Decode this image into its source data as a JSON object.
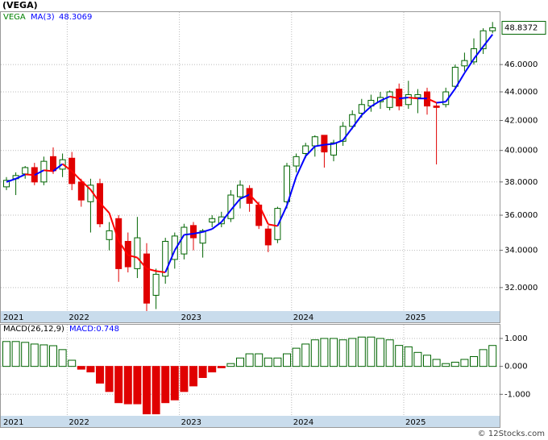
{
  "chart_data": [
    {
      "type": "candlestick",
      "title": "(VEGA)",
      "name": "VEGA",
      "x": [
        "2021",
        null,
        null,
        null,
        null,
        null,
        null,
        "2022",
        null,
        null,
        null,
        null,
        null,
        null,
        null,
        null,
        null,
        null,
        null,
        "2023",
        null,
        null,
        null,
        null,
        null,
        null,
        null,
        null,
        null,
        null,
        null,
        "2024",
        null,
        null,
        null,
        null,
        null,
        null,
        null,
        null,
        null,
        null,
        null,
        "2025",
        null,
        null,
        null,
        null,
        null,
        null,
        null,
        null,
        null
      ],
      "open": [
        37.7,
        38.2,
        38.5,
        38.9,
        38.0,
        39.6,
        38.8,
        39.5,
        38.0,
        36.8,
        37.9,
        34.6,
        35.8,
        34.5,
        33.0,
        33.8,
        31.6,
        32.6,
        33.5,
        33.8,
        35.4,
        34.4,
        35.6,
        35.5,
        35.8,
        37.1,
        37.6,
        36.6,
        35.2,
        34.6,
        36.8,
        39.0,
        39.8,
        40.3,
        41.0,
        39.7,
        40.6,
        41.6,
        42.5,
        43.0,
        43.3,
        42.9,
        44.2,
        43.1,
        43.6,
        44.0,
        43.0,
        43.1,
        44.4,
        45.9,
        46.2,
        47.2,
        48.6
      ],
      "high": [
        38.3,
        38.6,
        39.0,
        39.2,
        39.6,
        40.2,
        39.8,
        39.9,
        38.2,
        38.2,
        38.2,
        35.6,
        36.0,
        35.0,
        35.9,
        34.4,
        33.0,
        34.7,
        35.0,
        35.5,
        35.6,
        35.2,
        36.0,
        36.2,
        37.5,
        38.1,
        37.8,
        36.8,
        35.4,
        36.5,
        39.2,
        39.8,
        40.5,
        41.0,
        41.0,
        40.7,
        41.9,
        42.7,
        43.5,
        43.8,
        44.0,
        44.1,
        44.6,
        44.8,
        44.2,
        44.3,
        43.2,
        44.3,
        46.0,
        46.9,
        48.0,
        48.8,
        49.3
      ],
      "low": [
        37.5,
        37.2,
        38.2,
        37.8,
        37.8,
        38.5,
        38.3,
        37.5,
        36.5,
        35.0,
        35.3,
        34.0,
        32.3,
        32.8,
        32.5,
        30.8,
        30.9,
        32.2,
        33.0,
        33.5,
        34.0,
        33.6,
        35.3,
        35.3,
        35.6,
        36.4,
        36.2,
        35.2,
        33.9,
        34.4,
        36.4,
        38.6,
        39.5,
        39.6,
        38.9,
        39.3,
        40.3,
        41.4,
        42.2,
        42.6,
        42.8,
        42.7,
        42.7,
        42.8,
        42.5,
        42.4,
        39.1,
        42.9,
        44.2,
        45.5,
        46.0,
        46.8,
        48.4
      ],
      "close": [
        38.1,
        38.4,
        38.9,
        38.0,
        39.3,
        38.7,
        39.4,
        37.9,
        36.9,
        37.8,
        35.5,
        35.1,
        33.0,
        33.1,
        34.7,
        31.2,
        32.7,
        34.5,
        34.8,
        35.3,
        34.7,
        35.1,
        35.8,
        35.9,
        37.2,
        37.8,
        36.7,
        35.4,
        34.3,
        36.4,
        39.0,
        39.6,
        40.3,
        40.9,
        39.9,
        40.5,
        41.6,
        42.4,
        43.1,
        43.4,
        43.6,
        44.0,
        43.0,
        43.8,
        43.8,
        43.0,
        42.9,
        44.0,
        45.8,
        46.3,
        47.2,
        48.6,
        48.8372
      ],
      "last_label": "48.8372",
      "up_color": "#006400",
      "down_color": "#e00000",
      "name_color": "#008000",
      "ma": {
        "name": "MA(3)",
        "value_label": "48.3069",
        "up_color": "#0000ff",
        "down_color": "#ff0000",
        "values": [
          38.0,
          38.2,
          38.47,
          38.43,
          38.73,
          38.67,
          39.13,
          38.67,
          38.07,
          37.53,
          36.73,
          36.13,
          34.53,
          33.73,
          33.6,
          33.0,
          32.87,
          32.8,
          34.0,
          34.87,
          34.93,
          35.03,
          35.2,
          35.6,
          36.3,
          36.97,
          37.23,
          36.63,
          35.47,
          35.37,
          36.57,
          38.33,
          39.63,
          40.27,
          40.37,
          40.43,
          40.67,
          41.5,
          42.37,
          42.97,
          43.37,
          43.67,
          43.53,
          43.6,
          43.53,
          43.53,
          43.23,
          43.3,
          44.23,
          45.37,
          46.43,
          47.37,
          48.3069
        ]
      },
      "ylim": [
        30.8,
        50.1
      ],
      "log_scale": true,
      "grid": true,
      "yticks": [
        {
          "value": 32,
          "label": "32.0000"
        },
        {
          "value": 34,
          "label": "34.0000"
        },
        {
          "value": 36,
          "label": "36.0000"
        },
        {
          "value": 38,
          "label": "38.0000"
        },
        {
          "value": 40,
          "label": "40.0000"
        },
        {
          "value": 42,
          "label": "42.0000"
        },
        {
          "value": 44,
          "label": "44.0000"
        },
        {
          "value": 46,
          "label": "46.0000"
        }
      ]
    },
    {
      "type": "bar",
      "title": "MACD(26,12,9)",
      "label": "MACD:0.748",
      "label_color": "#0000ff",
      "values": [
        0.89,
        0.89,
        0.86,
        0.8,
        0.77,
        0.74,
        0.6,
        0.22,
        -0.1,
        -0.2,
        -0.6,
        -0.9,
        -1.3,
        -1.34,
        -1.34,
        -1.7,
        -1.7,
        -1.3,
        -1.2,
        -0.9,
        -0.7,
        -0.4,
        -0.2,
        -0.05,
        0.1,
        0.3,
        0.45,
        0.45,
        0.3,
        0.3,
        0.45,
        0.65,
        0.8,
        0.95,
        1.0,
        1.0,
        0.95,
        1.0,
        1.05,
        1.05,
        1.0,
        0.95,
        0.75,
        0.7,
        0.5,
        0.4,
        0.25,
        0.1,
        0.15,
        0.25,
        0.35,
        0.6,
        0.748
      ],
      "pos_color": "#006400",
      "neg_color": "#e00000",
      "ylim": [
        -1.77,
        1.49
      ],
      "grid": true,
      "yticks": [
        {
          "value": -1,
          "label": "-1.000"
        },
        {
          "value": 0,
          "label": "0.000"
        },
        {
          "value": 1,
          "label": "1.000"
        }
      ]
    }
  ],
  "footer": "© 12Stocks.com"
}
